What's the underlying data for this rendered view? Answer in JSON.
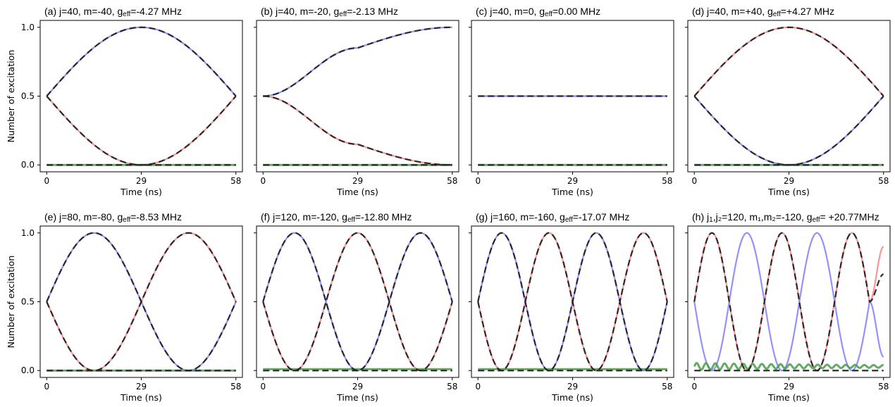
{
  "figure": {
    "ylabel": "Number of excitation",
    "xlabel": "Time (ns)"
  },
  "chart_data": [
    {
      "panel": "a",
      "type": "line",
      "title": "(a) j=40, m=-40, g",
      "title_sub": "eff",
      "title_rest": "=-4.27 MHz",
      "xlabel": "Time (ns)",
      "ylabel": "Number of excitation",
      "xlim": [
        -2,
        60
      ],
      "ylim": [
        -0.05,
        1.05
      ],
      "xticks": [
        0,
        29,
        58
      ],
      "yticks": [
        0.0,
        0.5,
        1.0
      ],
      "show_yticklabels": true,
      "half_periods": 1,
      "start_red": "down",
      "series": [
        {
          "color": "#ff7f7f",
          "style": "solid",
          "x": [
            0,
            29,
            58
          ],
          "y": [
            0.5,
            0.0,
            0.5
          ]
        },
        {
          "color": "#7f7fff",
          "style": "solid",
          "x": [
            0,
            29,
            58
          ],
          "y": [
            0.5,
            1.0,
            0.5
          ]
        },
        {
          "color": "#4a9c4a",
          "style": "solid",
          "x": [
            0,
            58
          ],
          "y": [
            0.0,
            0.0
          ]
        },
        {
          "color": "#222222",
          "style": "dashed",
          "x": [
            0,
            29,
            58
          ],
          "y": [
            0.5,
            0.0,
            0.5
          ]
        },
        {
          "color": "#222222",
          "style": "dashed",
          "x": [
            0,
            29,
            58
          ],
          "y": [
            0.5,
            1.0,
            0.5
          ]
        },
        {
          "color": "#222222",
          "style": "dashed",
          "x": [
            0,
            58
          ],
          "y": [
            0.0,
            0.0
          ]
        }
      ]
    },
    {
      "panel": "b",
      "type": "line",
      "title": "(b) j=40, m=-20, g",
      "title_sub": "eff",
      "title_rest": "=-2.13 MHz",
      "xlabel": "Time (ns)",
      "ylabel": "",
      "xlim": [
        -2,
        60
      ],
      "ylim": [
        -0.05,
        1.05
      ],
      "xticks": [
        0,
        29,
        58
      ],
      "yticks": [
        0.0,
        0.5,
        1.0
      ],
      "show_yticklabels": false,
      "half_periods": 0.5,
      "start_red": "down",
      "series": [
        {
          "color": "#ff7f7f",
          "style": "solid",
          "x": [
            0,
            29,
            58
          ],
          "y": [
            0.5,
            0.15,
            0.0
          ]
        },
        {
          "color": "#7f7fff",
          "style": "solid",
          "x": [
            0,
            29,
            58
          ],
          "y": [
            0.5,
            0.85,
            1.0
          ]
        },
        {
          "color": "#4a9c4a",
          "style": "solid",
          "x": [
            0,
            58
          ],
          "y": [
            0.0,
            0.0
          ]
        },
        {
          "color": "#222222",
          "style": "dashed",
          "x": [
            0,
            29,
            58
          ],
          "y": [
            0.5,
            0.15,
            0.0
          ]
        },
        {
          "color": "#222222",
          "style": "dashed",
          "x": [
            0,
            29,
            58
          ],
          "y": [
            0.5,
            0.85,
            1.0
          ]
        },
        {
          "color": "#222222",
          "style": "dashed",
          "x": [
            0,
            58
          ],
          "y": [
            0.0,
            0.0
          ]
        }
      ]
    },
    {
      "panel": "c",
      "type": "line",
      "title": "(c) j=40, m=0, g",
      "title_sub": "eff",
      "title_rest": "=0.00 MHz",
      "xlabel": "Time (ns)",
      "ylabel": "",
      "xlim": [
        -2,
        60
      ],
      "ylim": [
        -0.05,
        1.05
      ],
      "xticks": [
        0,
        29,
        58
      ],
      "yticks": [
        0.0,
        0.5,
        1.0
      ],
      "show_yticklabels": false,
      "half_periods": 0,
      "start_red": "flat",
      "series": [
        {
          "color": "#ff7f7f",
          "style": "solid",
          "x": [
            0,
            58
          ],
          "y": [
            0.5,
            0.5
          ]
        },
        {
          "color": "#7f7fff",
          "style": "solid",
          "x": [
            0,
            58
          ],
          "y": [
            0.5,
            0.5
          ]
        },
        {
          "color": "#4a9c4a",
          "style": "solid",
          "x": [
            0,
            58
          ],
          "y": [
            0.0,
            0.0
          ]
        },
        {
          "color": "#222222",
          "style": "dashed",
          "x": [
            0,
            58
          ],
          "y": [
            0.5,
            0.5
          ]
        },
        {
          "color": "#222222",
          "style": "dashed",
          "x": [
            0,
            58
          ],
          "y": [
            0.0,
            0.0
          ]
        }
      ]
    },
    {
      "panel": "d",
      "type": "line",
      "title": "(d) j=40, m=+40, g",
      "title_sub": "eff",
      "title_rest": "=+4.27 MHz",
      "xlabel": "Time (ns)",
      "ylabel": "",
      "xlim": [
        -2,
        60
      ],
      "ylim": [
        -0.05,
        1.05
      ],
      "xticks": [
        0,
        29,
        58
      ],
      "yticks": [
        0.0,
        0.5,
        1.0
      ],
      "show_yticklabels": false,
      "half_periods": 1,
      "start_red": "up",
      "series": [
        {
          "color": "#ff7f7f",
          "style": "solid",
          "x": [
            0,
            29,
            58
          ],
          "y": [
            0.5,
            1.0,
            0.5
          ]
        },
        {
          "color": "#7f7fff",
          "style": "solid",
          "x": [
            0,
            29,
            58
          ],
          "y": [
            0.5,
            0.0,
            0.5
          ]
        },
        {
          "color": "#4a9c4a",
          "style": "solid",
          "x": [
            0,
            58
          ],
          "y": [
            0.0,
            0.0
          ]
        },
        {
          "color": "#222222",
          "style": "dashed",
          "x": [
            0,
            29,
            58
          ],
          "y": [
            0.5,
            1.0,
            0.5
          ]
        },
        {
          "color": "#222222",
          "style": "dashed",
          "x": [
            0,
            29,
            58
          ],
          "y": [
            0.5,
            0.0,
            0.5
          ]
        },
        {
          "color": "#222222",
          "style": "dashed",
          "x": [
            0,
            58
          ],
          "y": [
            0.0,
            0.0
          ]
        }
      ]
    },
    {
      "panel": "e",
      "type": "line",
      "title": "(e) j=80, m=-80, g",
      "title_sub": "eff",
      "title_rest": "=-8.53 MHz",
      "xlabel": "Time (ns)",
      "ylabel": "Number of excitation",
      "xlim": [
        -2,
        60
      ],
      "ylim": [
        -0.05,
        1.05
      ],
      "xticks": [
        0,
        29,
        58
      ],
      "yticks": [
        0.0,
        0.5,
        1.0
      ],
      "show_yticklabels": true,
      "half_periods": 2,
      "start_red": "down",
      "series": [
        {
          "color": "#ff7f7f",
          "style": "solid",
          "x": [
            0,
            14.5,
            29,
            43.5,
            58
          ],
          "y": [
            0.5,
            0.0,
            0.5,
            1.0,
            0.5
          ]
        },
        {
          "color": "#7f7fff",
          "style": "solid",
          "x": [
            0,
            14.5,
            29,
            43.5,
            58
          ],
          "y": [
            0.5,
            1.0,
            0.5,
            0.0,
            0.5
          ]
        },
        {
          "color": "#4a9c4a",
          "style": "solid",
          "x": [
            0,
            58
          ],
          "y": [
            0.0,
            0.0
          ]
        },
        {
          "color": "#222222",
          "style": "dashed",
          "x": [
            0,
            14.5,
            29,
            43.5,
            58
          ],
          "y": [
            0.5,
            0.0,
            0.5,
            1.0,
            0.5
          ]
        },
        {
          "color": "#222222",
          "style": "dashed",
          "x": [
            0,
            14.5,
            29,
            43.5,
            58
          ],
          "y": [
            0.5,
            1.0,
            0.5,
            0.0,
            0.5
          ]
        },
        {
          "color": "#222222",
          "style": "dashed",
          "x": [
            0,
            58
          ],
          "y": [
            0.0,
            0.0
          ]
        }
      ]
    },
    {
      "panel": "f",
      "type": "line",
      "title": "(f) j=120, m=-120, g",
      "title_sub": "eff",
      "title_rest": "=-12.80 MHz",
      "xlabel": "Time (ns)",
      "ylabel": "",
      "xlim": [
        -2,
        60
      ],
      "ylim": [
        -0.05,
        1.05
      ],
      "xticks": [
        0,
        29,
        58
      ],
      "yticks": [
        0.0,
        0.5,
        1.0
      ],
      "show_yticklabels": false,
      "half_periods": 3,
      "start_red": "down",
      "series": [
        {
          "color": "#ff7f7f",
          "style": "solid",
          "x": [
            0,
            9.7,
            19.3,
            29,
            38.7,
            48.3,
            58
          ],
          "y": [
            0.5,
            0.0,
            0.5,
            1.0,
            0.5,
            0.0,
            0.5
          ]
        },
        {
          "color": "#7f7fff",
          "style": "solid",
          "x": [
            0,
            9.7,
            19.3,
            29,
            38.7,
            48.3,
            58
          ],
          "y": [
            0.5,
            1.0,
            0.5,
            0.0,
            0.5,
            1.0,
            0.5
          ]
        },
        {
          "color": "#4a9c4a",
          "style": "solid",
          "x": [
            0,
            58
          ],
          "y": [
            0.01,
            0.01
          ]
        },
        {
          "color": "#222222",
          "style": "dashed",
          "x": [
            0,
            9.7,
            19.3,
            29,
            38.7,
            48.3,
            58
          ],
          "y": [
            0.5,
            0.0,
            0.5,
            1.0,
            0.5,
            0.0,
            0.5
          ]
        },
        {
          "color": "#222222",
          "style": "dashed",
          "x": [
            0,
            9.7,
            19.3,
            29,
            38.7,
            48.3,
            58
          ],
          "y": [
            0.5,
            1.0,
            0.5,
            0.0,
            0.5,
            1.0,
            0.5
          ]
        },
        {
          "color": "#222222",
          "style": "dashed",
          "x": [
            0,
            58
          ],
          "y": [
            0.0,
            0.0
          ]
        }
      ]
    },
    {
      "panel": "g",
      "type": "line",
      "title": "(g) j=160, m=-160, g",
      "title_sub": "eff",
      "title_rest": "=-17.07 MHz",
      "xlabel": "Time (ns)",
      "ylabel": "",
      "xlim": [
        -2,
        60
      ],
      "ylim": [
        -0.05,
        1.05
      ],
      "xticks": [
        0,
        29,
        58
      ],
      "yticks": [
        0.0,
        0.5,
        1.0
      ],
      "show_yticklabels": false,
      "half_periods": 4,
      "start_red": "down",
      "series": [
        {
          "color": "#ff7f7f",
          "style": "solid",
          "x": [
            0,
            7.25,
            14.5,
            21.75,
            29,
            36.25,
            43.5,
            50.75,
            58
          ],
          "y": [
            0.5,
            0.0,
            0.5,
            1.0,
            0.5,
            0.0,
            0.5,
            1.0,
            0.5
          ]
        },
        {
          "color": "#7f7fff",
          "style": "solid",
          "x": [
            0,
            7.25,
            14.5,
            21.75,
            29,
            36.25,
            43.5,
            50.75,
            58
          ],
          "y": [
            0.5,
            1.0,
            0.5,
            0.0,
            0.5,
            1.0,
            0.5,
            0.0,
            0.5
          ]
        },
        {
          "color": "#4a9c4a",
          "style": "solid",
          "x": [
            0,
            58
          ],
          "y": [
            0.01,
            0.01
          ]
        },
        {
          "color": "#222222",
          "style": "dashed",
          "x": [
            0,
            7.25,
            14.5,
            21.75,
            29,
            36.25,
            43.5,
            50.75,
            58
          ],
          "y": [
            0.5,
            0.0,
            0.5,
            1.0,
            0.5,
            0.0,
            0.5,
            1.0,
            0.5
          ]
        },
        {
          "color": "#222222",
          "style": "dashed",
          "x": [
            0,
            7.25,
            14.5,
            21.75,
            29,
            36.25,
            43.5,
            50.75,
            58
          ],
          "y": [
            0.5,
            1.0,
            0.5,
            0.0,
            0.5,
            1.0,
            0.5,
            0.0,
            0.5
          ]
        },
        {
          "color": "#222222",
          "style": "dashed",
          "x": [
            0,
            58
          ],
          "y": [
            0.0,
            0.0
          ]
        }
      ]
    },
    {
      "panel": "h",
      "type": "line",
      "title": "(h) j",
      "title_sub": "1",
      "title_rest": ",j₂=120, m₁,m₂=-120, g",
      "title_sub2": "eff",
      "title_rest2": "= +20.77MHz",
      "xlabel": "Time (ns)",
      "ylabel": "",
      "xlim": [
        -2,
        60
      ],
      "ylim": [
        -0.05,
        1.05
      ],
      "xticks": [
        0,
        29,
        58
      ],
      "yticks": [
        0.0,
        0.5,
        1.0
      ],
      "show_yticklabels": false,
      "half_periods": 5.4,
      "start_red": "down",
      "series": [
        {
          "color": "#ff7f7f",
          "style": "solid",
          "x": [
            0,
            5.4,
            10.7,
            16.1,
            21.5,
            26.9,
            32.2,
            37.6,
            43.0,
            48.3,
            53.7,
            58
          ],
          "y": [
            0.5,
            1.0,
            0.5,
            0.0,
            0.5,
            1.0,
            0.5,
            0.0,
            0.5,
            1.0,
            0.5,
            0.9
          ]
        },
        {
          "color": "#7f7fff",
          "style": "solid",
          "x": [
            0,
            5.4,
            10.7,
            16.1,
            21.5,
            26.9,
            32.2,
            37.6,
            43.0,
            48.3,
            53.7,
            58
          ],
          "y": [
            0.5,
            0.0,
            0.5,
            1.0,
            0.5,
            0.0,
            0.5,
            1.0,
            0.5,
            0.0,
            0.5,
            0.1
          ]
        },
        {
          "color": "#4a9c4a",
          "style": "solid",
          "x": [
            0,
            29,
            58
          ],
          "y": [
            0.03,
            0.03,
            0.03
          ]
        },
        {
          "color": "#222222",
          "style": "dashed",
          "x": [
            0,
            5.4,
            10.7,
            16.1,
            21.5,
            26.9,
            32.2,
            37.6,
            43.0,
            48.3,
            53.7,
            58
          ],
          "y": [
            0.5,
            1.0,
            0.5,
            0.0,
            0.5,
            1.0,
            0.5,
            0.0,
            0.5,
            1.0,
            0.5,
            0.7
          ]
        },
        {
          "color": "#222222",
          "style": "dashed",
          "x": [
            0,
            58
          ],
          "y": [
            0.0,
            0.0
          ]
        }
      ]
    }
  ]
}
